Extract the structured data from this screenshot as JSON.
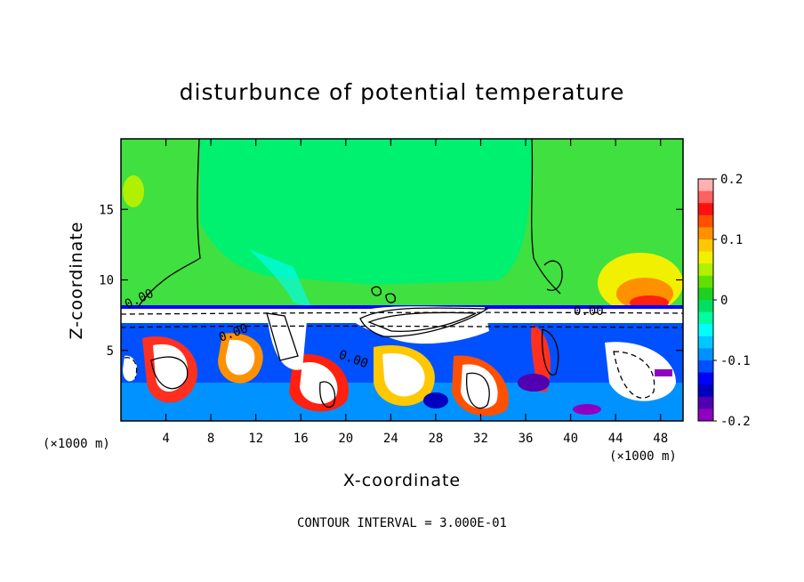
{
  "chart_data": {
    "type": "heatmap",
    "title": "disturbunce of potential temperature",
    "xlabel": "X-coordinate",
    "ylabel": "Z-coordinate",
    "x_unit": "(×1000 m)",
    "xlim": [
      0,
      50
    ],
    "ylim": [
      0,
      20
    ],
    "x_ticks": [
      4,
      8,
      12,
      16,
      20,
      24,
      28,
      32,
      36,
      40,
      44,
      48
    ],
    "y_ticks": [
      5,
      10,
      15
    ],
    "colorbar": {
      "range": [
        -0.2,
        0.2
      ],
      "tick_values": [
        0.2,
        0.1,
        0,
        -0.1,
        -0.2
      ],
      "tick_labels": [
        "0.2",
        "0.1",
        "0",
        "-0.1",
        "-0.2"
      ],
      "colors": [
        "#ffb0b0",
        "#ff6060",
        "#ff1010",
        "#ff5000",
        "#ff9000",
        "#ffc800",
        "#f0f000",
        "#b0f000",
        "#60e000",
        "#20d020",
        "#00e060",
        "#00ffa0",
        "#00ffff",
        "#00c8ff",
        "#0090ff",
        "#0050ff",
        "#0000ff",
        "#0000c0",
        "#5000b0",
        "#9000c0"
      ]
    },
    "contour_interval_text": "CONTOUR INTERVAL = 3.000E-01",
    "contour_labels": [
      "0.00",
      "0.00",
      "0.00",
      "0.00"
    ]
  }
}
